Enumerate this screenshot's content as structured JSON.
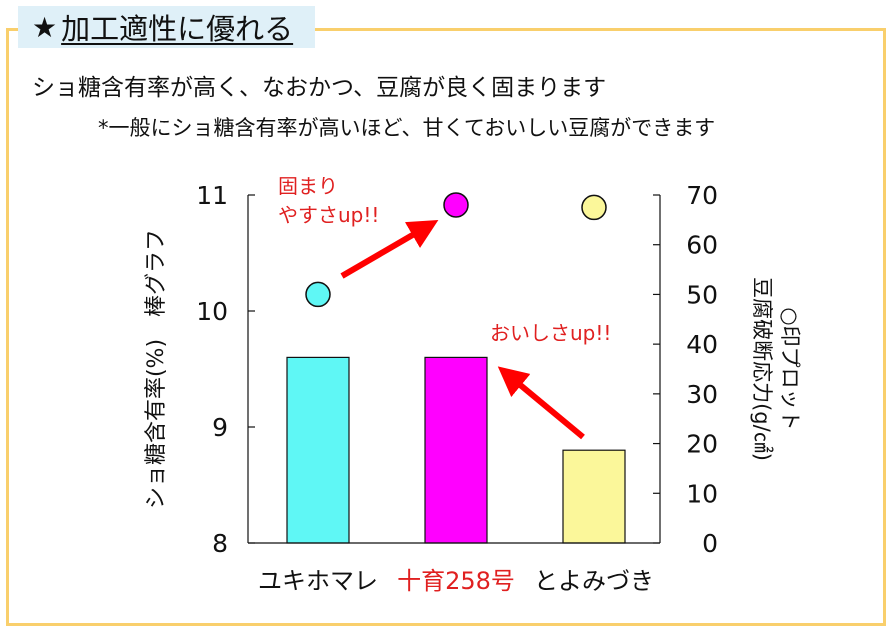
{
  "header": {
    "title_star": "★",
    "title": "加工適性に優れる",
    "headline": "ショ糖含有率が高く、なおかつ、豆腐が良く固まります",
    "note": "*一般にショ糖含有率が高いほど、甘くておいしい豆腐ができます"
  },
  "chart_data": {
    "type": "bar",
    "categories": [
      "ユキホマレ",
      "十育258号",
      "とよみづき"
    ],
    "category_colors": [
      "#111111",
      "#e02020",
      "#111111"
    ],
    "series": [
      {
        "name": "ショ糖含有率(%) 棒グラフ",
        "type": "bar",
        "axis": "left",
        "values": [
          9.6,
          9.6,
          8.8
        ],
        "colors": [
          "#5ff7f5",
          "#ff00ff",
          "#fbf79a"
        ]
      },
      {
        "name": "豆腐破断応力(g/㎠) ○印プロット",
        "type": "scatter",
        "axis": "right",
        "values": [
          50,
          68,
          67.5
        ],
        "colors": [
          "#5ff7f5",
          "#ff00ff",
          "#fbf79a"
        ]
      }
    ],
    "ylim_left": [
      8,
      11
    ],
    "yticks_left": [
      8,
      9,
      10,
      11
    ],
    "ylabel_left": "ショ糖含有率(%)　棒グラフ",
    "ylim_right": [
      0,
      70
    ],
    "yticks_right": [
      0,
      10,
      20,
      30,
      40,
      50,
      60,
      70
    ],
    "ylabel_right_line1": "豆腐破断応力(g/㎠)",
    "ylabel_right_line2": "○印プロット",
    "grid": false,
    "annotations": [
      {
        "text_line1": "固まり",
        "text_line2": "やすさup!!",
        "color": "#e02020"
      },
      {
        "text_line1": "おいしさup!!",
        "color": "#e02020"
      }
    ],
    "arrow_color": "#ff0000"
  }
}
